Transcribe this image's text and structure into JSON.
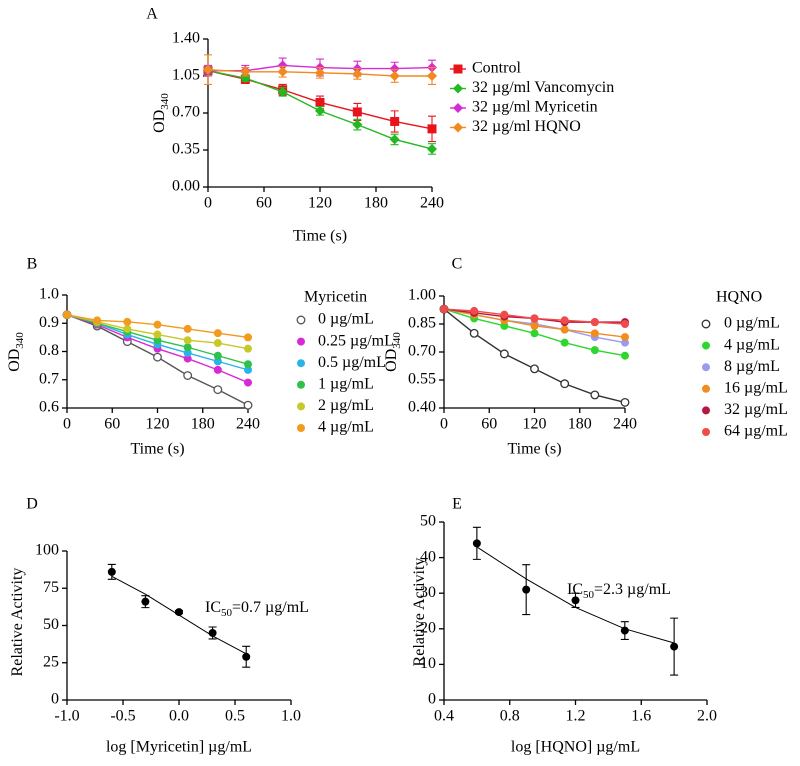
{
  "chart_data": [
    {
      "type": "line",
      "panel": "A",
      "xlabel": "Time (s)",
      "ylabel": {
        "text": "OD",
        "subscript": "340"
      },
      "x": [
        0,
        40,
        80,
        120,
        160,
        200,
        240
      ],
      "xlim": [
        0,
        240
      ],
      "xticks": [
        0,
        60,
        120,
        180,
        240
      ],
      "ylim": [
        0,
        1.4
      ],
      "yticks": [
        {
          "value": 0,
          "label": "0.00"
        },
        0.35,
        {
          "value": 0.7,
          "label": "0.70"
        },
        1.05,
        {
          "value": 1.4,
          "label": "1.40"
        }
      ],
      "legend": "right",
      "series": [
        {
          "name": "Control",
          "color": "#e8141b",
          "marker": "square",
          "values": [
            1.1,
            1.02,
            0.92,
            0.8,
            0.71,
            0.62,
            0.55
          ],
          "errors": [
            0.03,
            0.04,
            0.05,
            0.06,
            0.08,
            0.1,
            0.12
          ]
        },
        {
          "name": "32 µg/ml Vancomycin",
          "color": "#22b822",
          "marker": "diamond",
          "values": [
            1.1,
            1.03,
            0.9,
            0.72,
            0.59,
            0.45,
            0.36
          ],
          "errors": [
            0.03,
            0.03,
            0.04,
            0.04,
            0.05,
            0.05,
            0.05
          ]
        },
        {
          "name": "32 µg/ml Myricetin",
          "color": "#d62ad6",
          "marker": "diamond",
          "values": [
            1.1,
            1.1,
            1.15,
            1.13,
            1.12,
            1.12,
            1.13
          ],
          "errors": [
            0.05,
            0.05,
            0.07,
            0.08,
            0.07,
            0.06,
            0.07
          ]
        },
        {
          "name": "32 µg/ml HQNO",
          "color": "#f2891e",
          "marker": "diamond",
          "values": [
            1.11,
            1.09,
            1.09,
            1.08,
            1.07,
            1.05,
            1.05
          ],
          "errors": [
            0.14,
            0.04,
            0.05,
            0.05,
            0.05,
            0.06,
            0.08
          ]
        }
      ]
    },
    {
      "type": "line",
      "panel": "B",
      "xlabel": "Time (s)",
      "ylabel": {
        "text": "OD",
        "subscript": "340"
      },
      "x": [
        0,
        40,
        80,
        120,
        160,
        200,
        240
      ],
      "xlim": [
        0,
        240
      ],
      "xticks": [
        0,
        60,
        120,
        180,
        240
      ],
      "ylim": [
        0.6,
        1.0
      ],
      "yticks": [
        0.6,
        0.7,
        0.8,
        0.9,
        {
          "value": 1.0,
          "label": "1.0"
        }
      ],
      "legend": "right",
      "legend_title": "Myricetin",
      "series": [
        {
          "name": "0 µg/mL",
          "color": "#555555",
          "marker": "open-circle",
          "values": [
            0.93,
            0.89,
            0.835,
            0.78,
            0.715,
            0.665,
            0.61
          ]
        },
        {
          "name": "0.25 µg/mL",
          "color": "#d62ad6",
          "marker": "circle",
          "values": [
            0.93,
            0.895,
            0.85,
            0.81,
            0.775,
            0.735,
            0.69
          ]
        },
        {
          "name": "0.5 µg/mL",
          "color": "#29b3e8",
          "marker": "circle",
          "values": [
            0.93,
            0.9,
            0.86,
            0.825,
            0.795,
            0.765,
            0.735
          ]
        },
        {
          "name": "1 µg/mL",
          "color": "#2fc24a",
          "marker": "circle",
          "values": [
            0.93,
            0.9,
            0.87,
            0.84,
            0.815,
            0.785,
            0.755
          ]
        },
        {
          "name": "2 µg/mL",
          "color": "#c8c828",
          "marker": "circle",
          "values": [
            0.93,
            0.905,
            0.88,
            0.86,
            0.84,
            0.83,
            0.81
          ]
        },
        {
          "name": "4 µg/mL",
          "color": "#f29b1e",
          "marker": "circle",
          "values": [
            0.93,
            0.91,
            0.905,
            0.895,
            0.88,
            0.865,
            0.85
          ]
        }
      ]
    },
    {
      "type": "line",
      "panel": "C",
      "xlabel": "Time (s)",
      "ylabel": {
        "text": "OD",
        "subscript": "340"
      },
      "x": [
        0,
        40,
        80,
        120,
        160,
        200,
        240
      ],
      "xlim": [
        0,
        240
      ],
      "xticks": [
        0,
        60,
        120,
        180,
        240
      ],
      "ylim": [
        0.4,
        1.0
      ],
      "yticks": [
        {
          "value": 0.4,
          "label": "0.40"
        },
        0.55,
        {
          "value": 0.7,
          "label": "0.70"
        },
        0.85,
        {
          "value": 1.0,
          "label": "1.00"
        }
      ],
      "legend": "right",
      "legend_title": "HQNO",
      "series": [
        {
          "name": "0 µg/mL",
          "color": "#333333",
          "marker": "open-circle",
          "values": [
            0.93,
            0.8,
            0.69,
            0.61,
            0.53,
            0.47,
            0.43
          ]
        },
        {
          "name": "4 µg/mL",
          "color": "#2ed62e",
          "marker": "circle",
          "values": [
            0.93,
            0.88,
            0.84,
            0.8,
            0.75,
            0.71,
            0.68
          ]
        },
        {
          "name": "8 µg/mL",
          "color": "#9a9af0",
          "marker": "circle",
          "values": [
            0.93,
            0.9,
            0.87,
            0.85,
            0.82,
            0.78,
            0.75
          ]
        },
        {
          "name": "16 µg/mL",
          "color": "#f28c1e",
          "marker": "circle",
          "values": [
            0.93,
            0.9,
            0.87,
            0.84,
            0.82,
            0.8,
            0.78
          ]
        },
        {
          "name": "32 µg/mL",
          "color": "#b5173e",
          "marker": "circle",
          "values": [
            0.93,
            0.91,
            0.89,
            0.88,
            0.86,
            0.86,
            0.86
          ]
        },
        {
          "name": "64 µg/mL",
          "color": "#f04b4b",
          "marker": "circle",
          "values": [
            0.93,
            0.92,
            0.9,
            0.88,
            0.87,
            0.86,
            0.85
          ]
        }
      ]
    },
    {
      "type": "scatter",
      "panel": "D",
      "xlabel": "log [Myricetin] µg/mL",
      "ylabel": {
        "text": "Relative Activity"
      },
      "annotation": {
        "text": "IC",
        "subscript": "50",
        "rest": "=0.7 µg/mL"
      },
      "xlim": [
        -1.0,
        1.0
      ],
      "xticks": [
        {
          "value": -1.0,
          "label": "-1.0"
        },
        -0.5,
        {
          "value": 0,
          "label": "0.0"
        },
        0.5,
        {
          "value": 1.0,
          "label": "1.0"
        }
      ],
      "ylim": [
        0,
        100
      ],
      "yticks": [
        0,
        25,
        50,
        75,
        100
      ],
      "color": "#000000",
      "x": [
        -0.6,
        -0.3,
        0,
        0.3,
        0.6
      ],
      "values": [
        86,
        66,
        59,
        45,
        29
      ],
      "errors": [
        5,
        4,
        1,
        4,
        7
      ],
      "fit": {
        "x": [
          -0.6,
          -0.3,
          0,
          0.3,
          0.6
        ],
        "values": [
          83,
          71,
          57,
          43,
          31
        ]
      }
    },
    {
      "type": "scatter",
      "panel": "E",
      "xlabel": "log [HQNO] µg/mL",
      "ylabel": {
        "text": "Relative Activity"
      },
      "annotation": {
        "text": "IC",
        "subscript": "50",
        "rest": "=2.3 µg/mL"
      },
      "xlim": [
        0.4,
        2.0
      ],
      "xticks": [
        0.4,
        0.8,
        1.2,
        1.6,
        {
          "value": 2.0,
          "label": "2.0"
        }
      ],
      "ylim": [
        0,
        50
      ],
      "yticks": [
        0,
        10,
        20,
        30,
        40,
        50
      ],
      "color": "#000000",
      "x": [
        0.6,
        0.9,
        1.2,
        1.5,
        1.8
      ],
      "values": [
        44,
        31,
        28,
        19.5,
        15
      ],
      "errors": [
        4.5,
        7,
        2,
        2.5,
        8
      ],
      "fit": {
        "x": [
          0.6,
          0.9,
          1.2,
          1.5,
          1.8
        ],
        "values": [
          43,
          34,
          26,
          20,
          16
        ]
      }
    }
  ]
}
